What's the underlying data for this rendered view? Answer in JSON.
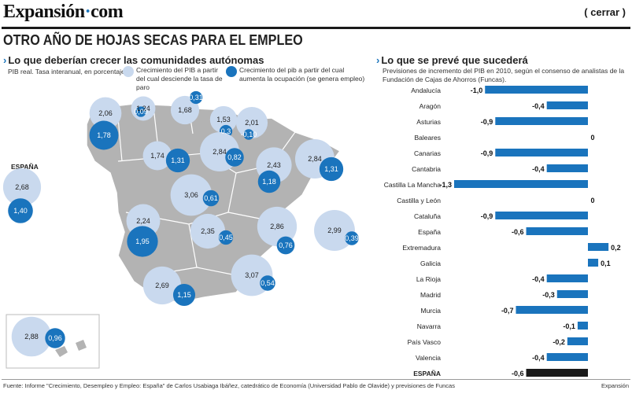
{
  "header": {
    "logo_main": "Expansión",
    "logo_suffix": "com",
    "close_label": "( cerrar )",
    "headline": "OTRO AÑO DE HOJAS SECAS PARA EL EMPLEO"
  },
  "left_panel": {
    "title": "Lo que deberían crecer las comunidades autónomas",
    "subtitle": "PIB real. Tasa interanual, en porcentaje.",
    "legend_light": "Crecimiento del PIB a partir del cual desciende la tasa de paro",
    "legend_dark": "Crecimiento del pib a partir del cual aumenta la ocupación (se genera empleo)",
    "espana_label": "ESPAÑA",
    "colors": {
      "light": "#c9d9ee",
      "dark": "#1a74bd",
      "land": "#b3b3b3"
    }
  },
  "right_panel": {
    "title": "Lo que se prevé que sucederá",
    "subtitle": "Previsiones de incremento del PIB en 2010, según el consenso de analistas de la Fundación de Cajas de Ahorros (Funcas).",
    "bar_color": "#1a74bd",
    "total_color": "#1a1a1a"
  },
  "chart_data": [
    {
      "type": "bar",
      "orientation": "horizontal",
      "title": "Lo que se prevé que sucederá",
      "categories": [
        "Andalucía",
        "Aragón",
        "Asturias",
        "Baleares",
        "Canarias",
        "Cantabria",
        "Castilla La Mancha",
        "Castilla y León",
        "Cataluña",
        "España",
        "Extremadura",
        "Galicia",
        "La Rioja",
        "Madrid",
        "Murcia",
        "Navarra",
        "País Vasco",
        "Valencia",
        "ESPAÑA"
      ],
      "values": [
        -1.0,
        -0.4,
        -0.9,
        0,
        -0.9,
        -0.4,
        -1.3,
        0,
        -0.9,
        -0.6,
        0.2,
        0.1,
        -0.4,
        -0.3,
        -0.7,
        -0.1,
        -0.2,
        -0.4,
        -0.6
      ],
      "labels": [
        "-1,0",
        "-0,4",
        "-0,9",
        "0",
        "-0,9",
        "-0,4",
        "-1,3",
        "0",
        "-0,9",
        "-0,6",
        "0,2",
        "0,1",
        "-0,4",
        "-0,3",
        "-0,7",
        "-0,1",
        "-0,2",
        "-0,4",
        "-0,6"
      ],
      "xlim": [
        -1.3,
        0.25
      ]
    },
    {
      "type": "scatter",
      "title": "Lo que deberían crecer las comunidades autónomas",
      "series": [
        {
          "name": "Crecimiento del PIB a partir del cual desciende la tasa de paro",
          "values": [
            2.68,
            2.06,
            1.24,
            1.68,
            1.53,
            2.01,
            1.74,
            2.84,
            2.43,
            2.84,
            3.06,
            2.24,
            2.35,
            2.86,
            2.99,
            2.69,
            3.07,
            2.88
          ],
          "labels": [
            "2,68",
            "2,06",
            "1,24",
            "1,68",
            "1,53",
            "2,01",
            "1,74",
            "2,84",
            "2,43",
            "2,84",
            "3,06",
            "2,24",
            "2,35",
            "2,86",
            "2,99",
            "2,69",
            "3,07",
            "2,88"
          ]
        },
        {
          "name": "Crecimiento del pib a partir del cual aumenta la ocupación (se genera empleo)",
          "values": [
            1.4,
            1.78,
            0.09,
            0.31,
            0.3,
            -0.1,
            1.31,
            0.82,
            1.18,
            1.31,
            0.61,
            1.95,
            0.45,
            0.76,
            0.39,
            1.15,
            0.54,
            0.96
          ],
          "labels": [
            "1,40",
            "1,78",
            "0,09",
            "0,31",
            "0,3",
            "-0,10",
            "1,31",
            "0,82",
            "1,18",
            "1,31",
            "0,61",
            "1,95",
            "0,45",
            "0,76",
            "0,39",
            "1,15",
            "0,54",
            "0,96"
          ]
        }
      ]
    }
  ],
  "footer": {
    "source": "Fuente: Informe \"Crecimiento, Desempleo y Empleo: España\" de Carlos Usabiaga Ibáñez, catedrático de Economía (Universidad Pablo de Olavide) y previsiones de Funcas",
    "credit": "Expansión"
  }
}
